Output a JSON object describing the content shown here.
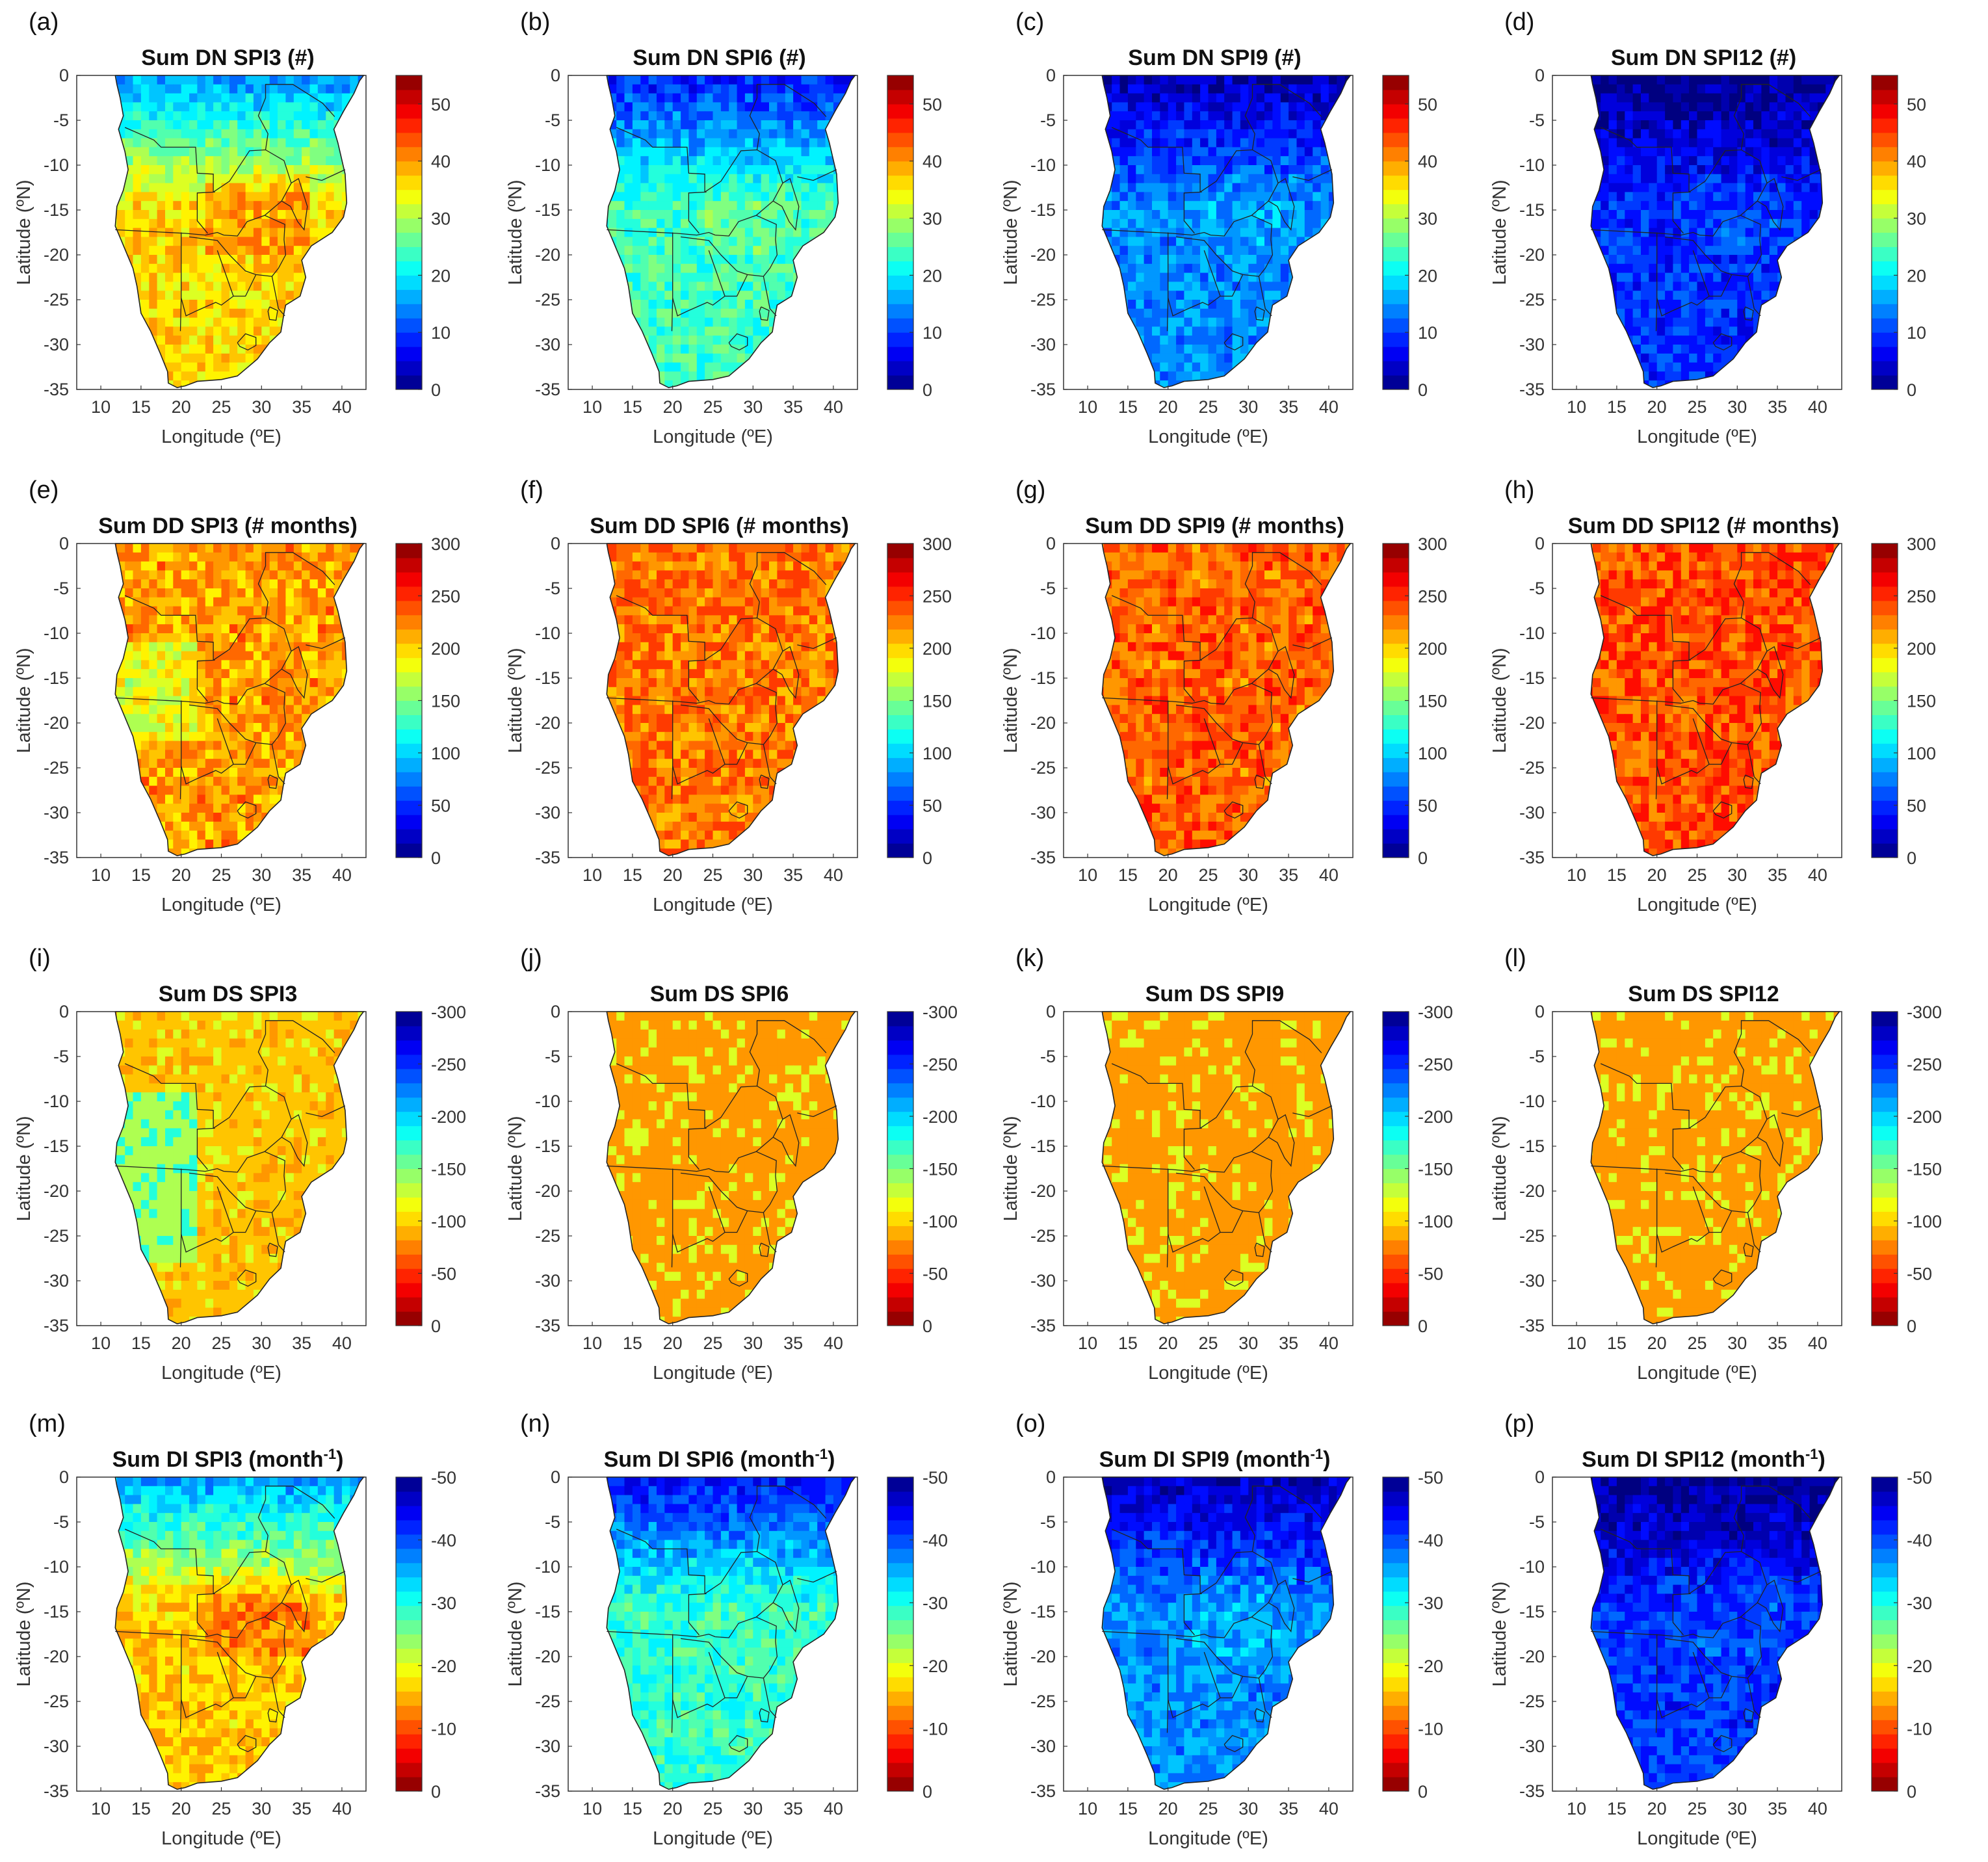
{
  "figure": {
    "xlabel": "Longitude (ºE)",
    "ylabel": "Latitude (ºN)",
    "xticks": [
      "10",
      "15",
      "20",
      "25",
      "30",
      "35",
      "40"
    ],
    "yticks": [
      "0",
      "-5",
      "-10",
      "-15",
      "-20",
      "-25",
      "-30",
      "-35"
    ],
    "xlim": [
      7,
      43
    ],
    "ylim": [
      -35,
      0
    ],
    "colormap": "jet"
  },
  "chart_data": [
    {
      "type": "heatmap",
      "letter": "(a)",
      "title": "Sum DN SPI3 (#)",
      "title_sup": "",
      "clim": [
        0,
        55
      ],
      "cticks": [
        "0",
        "10",
        "20",
        "30",
        "40",
        "50"
      ],
      "cbar_reversed": false,
      "pattern": "dn",
      "level": 0.66
    },
    {
      "type": "heatmap",
      "letter": "(b)",
      "title": "Sum DN SPI6 (#)",
      "title_sup": "",
      "clim": [
        0,
        55
      ],
      "cticks": [
        "0",
        "10",
        "20",
        "30",
        "40",
        "50"
      ],
      "cbar_reversed": false,
      "pattern": "dn",
      "level": 0.44
    },
    {
      "type": "heatmap",
      "letter": "(c)",
      "title": "Sum DN SPI9 (#)",
      "title_sup": "",
      "clim": [
        0,
        55
      ],
      "cticks": [
        "0",
        "10",
        "20",
        "30",
        "40",
        "50"
      ],
      "cbar_reversed": false,
      "pattern": "dn",
      "level": 0.26
    },
    {
      "type": "heatmap",
      "letter": "(d)",
      "title": "Sum DN SPI12 (#)",
      "title_sup": "",
      "clim": [
        0,
        55
      ],
      "cticks": [
        "0",
        "10",
        "20",
        "30",
        "40",
        "50"
      ],
      "cbar_reversed": false,
      "pattern": "dn",
      "level": 0.17
    },
    {
      "type": "heatmap",
      "letter": "(e)",
      "title": "Sum DD SPI3 (# months)",
      "title_sup": "",
      "clim": [
        0,
        300
      ],
      "cticks": [
        "0",
        "50",
        "100",
        "150",
        "200",
        "250",
        "300"
      ],
      "cbar_reversed": false,
      "pattern": "dd",
      "level": 0.72
    },
    {
      "type": "heatmap",
      "letter": "(f)",
      "title": "Sum DD SPI6 (# months)",
      "title_sup": "",
      "clim": [
        0,
        300
      ],
      "cticks": [
        "0",
        "50",
        "100",
        "150",
        "200",
        "250",
        "300"
      ],
      "cbar_reversed": false,
      "pattern": "dd",
      "level": 0.76
    },
    {
      "type": "heatmap",
      "letter": "(g)",
      "title": "Sum DD SPI9 (# months)",
      "title_sup": "",
      "clim": [
        0,
        300
      ],
      "cticks": [
        "0",
        "50",
        "100",
        "150",
        "200",
        "250",
        "300"
      ],
      "cbar_reversed": false,
      "pattern": "dd",
      "level": 0.78
    },
    {
      "type": "heatmap",
      "letter": "(h)",
      "title": "Sum DD SPI12 (# months)",
      "title_sup": "",
      "clim": [
        0,
        300
      ],
      "cticks": [
        "0",
        "50",
        "100",
        "150",
        "200",
        "250",
        "300"
      ],
      "cbar_reversed": false,
      "pattern": "dd",
      "level": 0.8
    },
    {
      "type": "heatmap",
      "letter": "(i)",
      "title": "Sum DS SPI3",
      "title_sup": "",
      "clim": [
        -300,
        0
      ],
      "cticks": [
        "0",
        "-50",
        "-100",
        "-150",
        "-200",
        "-250",
        "-300"
      ],
      "cbar_reversed": true,
      "pattern": "ds",
      "level": 0.7
    },
    {
      "type": "heatmap",
      "letter": "(j)",
      "title": "Sum DS SPI6",
      "title_sup": "",
      "clim": [
        -300,
        0
      ],
      "cticks": [
        "0",
        "-50",
        "-100",
        "-150",
        "-200",
        "-250",
        "-300"
      ],
      "cbar_reversed": true,
      "pattern": "ds",
      "level": 0.72
    },
    {
      "type": "heatmap",
      "letter": "(k)",
      "title": "Sum DS SPI9",
      "title_sup": "",
      "clim": [
        -300,
        0
      ],
      "cticks": [
        "0",
        "-50",
        "-100",
        "-150",
        "-200",
        "-250",
        "-300"
      ],
      "cbar_reversed": true,
      "pattern": "ds",
      "level": 0.72
    },
    {
      "type": "heatmap",
      "letter": "(l)",
      "title": "Sum DS SPI12",
      "title_sup": "",
      "clim": [
        -300,
        0
      ],
      "cticks": [
        "0",
        "-50",
        "-100",
        "-150",
        "-200",
        "-250",
        "-300"
      ],
      "cbar_reversed": true,
      "pattern": "ds",
      "level": 0.73
    },
    {
      "type": "heatmap",
      "letter": "(m)",
      "title": "Sum DI SPI3 (month",
      "title_sup": "-1",
      "title_end": ")",
      "clim": [
        -50,
        0
      ],
      "cticks": [
        "0",
        "-10",
        "-20",
        "-30",
        "-40",
        "-50"
      ],
      "cbar_reversed": true,
      "pattern": "dn",
      "level": 0.68
    },
    {
      "type": "heatmap",
      "letter": "(n)",
      "title": "Sum DI SPI6 (month",
      "title_sup": "-1",
      "title_end": ")",
      "clim": [
        -50,
        0
      ],
      "cticks": [
        "0",
        "-10",
        "-20",
        "-30",
        "-40",
        "-50"
      ],
      "cbar_reversed": true,
      "pattern": "dn",
      "level": 0.42
    },
    {
      "type": "heatmap",
      "letter": "(o)",
      "title": "Sum DI SPI9 (month",
      "title_sup": "-1",
      "title_end": ")",
      "clim": [
        -50,
        0
      ],
      "cticks": [
        "0",
        "-10",
        "-20",
        "-30",
        "-40",
        "-50"
      ],
      "cbar_reversed": true,
      "pattern": "dn",
      "level": 0.27
    },
    {
      "type": "heatmap",
      "letter": "(p)",
      "title": "Sum DI SPI12 (month",
      "title_sup": "-1",
      "title_end": ")",
      "clim": [
        -50,
        0
      ],
      "cticks": [
        "0",
        "-10",
        "-20",
        "-30",
        "-40",
        "-50"
      ],
      "cbar_reversed": true,
      "pattern": "dn",
      "level": 0.18
    }
  ]
}
